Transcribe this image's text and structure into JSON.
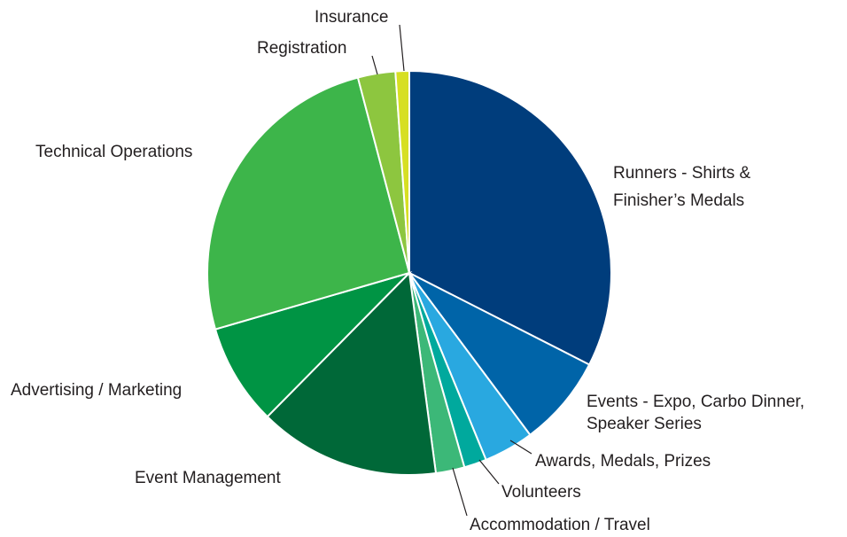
{
  "chart_data": {
    "type": "pie",
    "categories": [
      "Runners - Shirts & Finisher’s Medals",
      "Events - Expo, Carbo Dinner, Speaker Series",
      "Awards, Medals, Prizes",
      "Volunteers",
      "Accommodation / Travel",
      "Event Management",
      "Advertising / Marketing",
      "Technical Operations",
      "Registration",
      "Insurance"
    ],
    "values": [
      32.5,
      7.3,
      4,
      1.8,
      2.3,
      14.5,
      8.1,
      25.4,
      3,
      1.1
    ],
    "colors": [
      "#003d7c",
      "#0064a8",
      "#29a8e0",
      "#00a99d",
      "#3cb878",
      "#006838",
      "#009444",
      "#3db54a",
      "#8dc63f",
      "#d7df23"
    ]
  }
}
